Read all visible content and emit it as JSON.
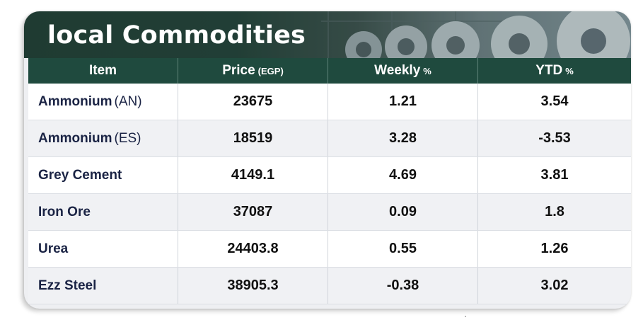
{
  "title": "local Commodities",
  "columns": [
    {
      "label": "Item",
      "unit": ""
    },
    {
      "label": "Price",
      "unit": "(EGP)"
    },
    {
      "label": "Weekly",
      "unit": "%"
    },
    {
      "label": "YTD",
      "unit": "%"
    }
  ],
  "rows": [
    {
      "name": "Ammonium",
      "unit": "(AN)",
      "price": "23675",
      "weekly": "1.21",
      "ytd": "3.54"
    },
    {
      "name": "Ammonium",
      "unit": "(ES)",
      "price": "18519",
      "weekly": "3.28",
      "ytd": "-3.53"
    },
    {
      "name": "Grey Cement",
      "unit": "",
      "price": "4149.1",
      "weekly": "4.69",
      "ytd": "3.81"
    },
    {
      "name": "Iron Ore",
      "unit": "",
      "price": "37087",
      "weekly": "0.09",
      "ytd": "1.8"
    },
    {
      "name": "Urea",
      "unit": "",
      "price": "24403.8",
      "weekly": "0.55",
      "ytd": "1.26"
    },
    {
      "name": "Ezz Steel",
      "unit": "",
      "price": "38905.3",
      "weekly": "-0.38",
      "ytd": "3.02"
    }
  ],
  "colors": {
    "banner": "#1f3b33",
    "header": "#1f4a3e",
    "item_text": "#1a2344"
  }
}
